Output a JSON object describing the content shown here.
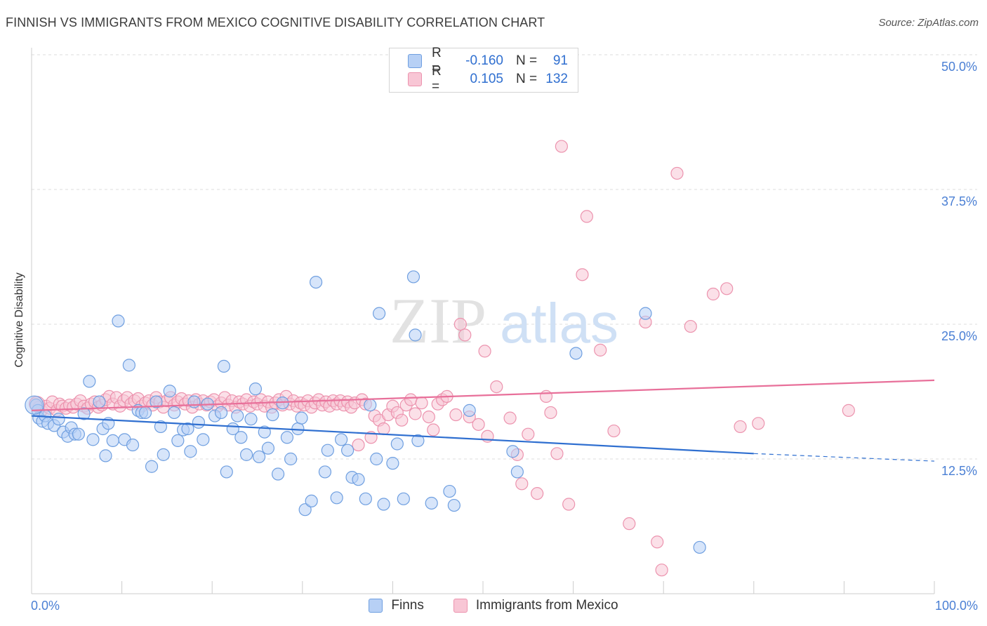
{
  "title": "FINNISH VS IMMIGRANTS FROM MEXICO COGNITIVE DISABILITY CORRELATION CHART",
  "source": "Source: ZipAtlas.com",
  "watermark": {
    "zip": "ZIP",
    "atlas": "atlas"
  },
  "legend": {
    "r_label": "R =",
    "n_label": "N =",
    "rows": [
      {
        "r": "-0.160",
        "n": "91"
      },
      {
        "r": "0.105",
        "n": "132"
      }
    ]
  },
  "colors": {
    "finns_fill": "#b7d0f5",
    "finns_stroke": "#6f9fe0",
    "finns_line": "#2f6fd0",
    "mexico_fill": "#f8c6d5",
    "mexico_stroke": "#ec93ae",
    "mexico_line": "#e8709a",
    "grid": "#dddddd",
    "axis_text": "#4a7fd4"
  },
  "chart_data": {
    "type": "scatter",
    "title": "FINNISH VS IMMIGRANTS FROM MEXICO COGNITIVE DISABILITY CORRELATION CHART",
    "ylabel": "Cognitive Disability",
    "xlabel": "",
    "xlim": [
      0,
      100
    ],
    "ylim": [
      0,
      52
    ],
    "x_tick_labels": [
      "0.0%",
      "100.0%"
    ],
    "y_ticks": [
      12.5,
      25.0,
      37.5,
      50.0
    ],
    "y_tick_labels": [
      "12.5%",
      "25.0%",
      "37.5%",
      "50.0%"
    ],
    "grid": true,
    "legend_position": "top-center",
    "series": [
      {
        "name": "Finns",
        "r": -0.16,
        "n": 91,
        "trend": {
          "x": [
            0,
            80
          ],
          "y": [
            16.5,
            13.0
          ],
          "dashed_to": [
            100,
            12.3
          ]
        },
        "points": [
          [
            0.5,
            17.5
          ],
          [
            0.7,
            17.0
          ],
          [
            0.8,
            16.3
          ],
          [
            1.2,
            16.0
          ],
          [
            1.5,
            16.5
          ],
          [
            1.8,
            15.8
          ],
          [
            2.5,
            15.6
          ],
          [
            3.0,
            16.2
          ],
          [
            3.5,
            15.0
          ],
          [
            4.0,
            14.6
          ],
          [
            4.4,
            15.4
          ],
          [
            4.8,
            14.8
          ],
          [
            5.2,
            14.8
          ],
          [
            5.8,
            16.7
          ],
          [
            6.4,
            19.7
          ],
          [
            6.8,
            14.3
          ],
          [
            7.5,
            17.8
          ],
          [
            7.9,
            15.3
          ],
          [
            8.2,
            12.8
          ],
          [
            8.5,
            15.8
          ],
          [
            9.0,
            14.2
          ],
          [
            9.6,
            25.3
          ],
          [
            10.3,
            14.3
          ],
          [
            10.8,
            21.2
          ],
          [
            11.2,
            13.8
          ],
          [
            11.8,
            17.0
          ],
          [
            12.2,
            16.8
          ],
          [
            12.6,
            16.8
          ],
          [
            13.3,
            11.8
          ],
          [
            13.8,
            17.8
          ],
          [
            14.3,
            15.5
          ],
          [
            14.6,
            12.9
          ],
          [
            15.3,
            18.8
          ],
          [
            15.8,
            16.8
          ],
          [
            16.2,
            14.2
          ],
          [
            16.8,
            15.2
          ],
          [
            17.3,
            15.3
          ],
          [
            17.6,
            13.2
          ],
          [
            18.0,
            17.8
          ],
          [
            18.5,
            15.9
          ],
          [
            19.0,
            14.3
          ],
          [
            19.5,
            17.6
          ],
          [
            20.3,
            16.5
          ],
          [
            21.0,
            16.8
          ],
          [
            21.3,
            21.1
          ],
          [
            21.6,
            11.3
          ],
          [
            22.3,
            15.3
          ],
          [
            22.8,
            16.5
          ],
          [
            23.2,
            14.5
          ],
          [
            23.8,
            12.9
          ],
          [
            24.3,
            16.2
          ],
          [
            24.8,
            19.0
          ],
          [
            25.2,
            12.7
          ],
          [
            25.8,
            15.0
          ],
          [
            26.2,
            13.5
          ],
          [
            26.7,
            16.6
          ],
          [
            27.3,
            11.1
          ],
          [
            27.8,
            17.7
          ],
          [
            28.3,
            14.5
          ],
          [
            28.7,
            12.5
          ],
          [
            29.5,
            15.3
          ],
          [
            29.9,
            16.3
          ],
          [
            30.3,
            7.8
          ],
          [
            31.0,
            8.6
          ],
          [
            31.5,
            28.9
          ],
          [
            32.5,
            11.3
          ],
          [
            32.8,
            13.3
          ],
          [
            33.8,
            8.9
          ],
          [
            34.3,
            14.3
          ],
          [
            35.0,
            13.3
          ],
          [
            35.5,
            10.8
          ],
          [
            36.2,
            10.6
          ],
          [
            37.0,
            8.8
          ],
          [
            37.5,
            17.5
          ],
          [
            38.2,
            12.5
          ],
          [
            38.5,
            26.0
          ],
          [
            39.0,
            8.3
          ],
          [
            40.0,
            12.1
          ],
          [
            40.5,
            13.9
          ],
          [
            41.2,
            8.8
          ],
          [
            42.3,
            29.4
          ],
          [
            42.5,
            24.0
          ],
          [
            42.8,
            14.2
          ],
          [
            44.3,
            8.4
          ],
          [
            46.3,
            9.5
          ],
          [
            46.8,
            8.2
          ],
          [
            48.5,
            17.0
          ],
          [
            53.3,
            13.2
          ],
          [
            53.8,
            11.3
          ],
          [
            60.3,
            22.3
          ],
          [
            68.0,
            26.0
          ],
          [
            74.0,
            4.3
          ]
        ]
      },
      {
        "name": "Immigrants from Mexico",
        "r": 0.105,
        "n": 132,
        "trend": {
          "x": [
            0,
            100
          ],
          "y": [
            17.0,
            19.8
          ]
        },
        "points": [
          [
            0.4,
            17.6
          ],
          [
            0.8,
            17.3
          ],
          [
            1.1,
            17.0
          ],
          [
            1.6,
            17.4
          ],
          [
            2.0,
            17.2
          ],
          [
            2.3,
            17.8
          ],
          [
            2.8,
            17.0
          ],
          [
            3.1,
            17.6
          ],
          [
            3.4,
            17.4
          ],
          [
            3.8,
            17.2
          ],
          [
            4.2,
            17.5
          ],
          [
            4.6,
            17.3
          ],
          [
            5.0,
            17.6
          ],
          [
            5.4,
            17.9
          ],
          [
            5.8,
            17.4
          ],
          [
            6.2,
            17.2
          ],
          [
            6.6,
            17.6
          ],
          [
            7.0,
            17.8
          ],
          [
            7.4,
            17.3
          ],
          [
            7.8,
            17.5
          ],
          [
            8.2,
            18.0
          ],
          [
            8.6,
            18.3
          ],
          [
            9.0,
            17.6
          ],
          [
            9.4,
            18.2
          ],
          [
            9.8,
            17.4
          ],
          [
            10.2,
            17.9
          ],
          [
            10.6,
            18.2
          ],
          [
            11.0,
            17.6
          ],
          [
            11.4,
            17.9
          ],
          [
            11.8,
            18.1
          ],
          [
            12.2,
            17.4
          ],
          [
            12.6,
            17.7
          ],
          [
            13.0,
            17.9
          ],
          [
            13.4,
            17.5
          ],
          [
            13.8,
            18.2
          ],
          [
            14.2,
            17.8
          ],
          [
            14.6,
            17.3
          ],
          [
            15.0,
            17.9
          ],
          [
            15.4,
            18.2
          ],
          [
            15.8,
            17.5
          ],
          [
            16.2,
            17.8
          ],
          [
            16.6,
            18.1
          ],
          [
            17.0,
            17.6
          ],
          [
            17.4,
            17.9
          ],
          [
            17.8,
            17.3
          ],
          [
            18.2,
            18.0
          ],
          [
            18.6,
            17.6
          ],
          [
            19.0,
            17.9
          ],
          [
            19.4,
            17.5
          ],
          [
            19.8,
            17.8
          ],
          [
            20.2,
            18.0
          ],
          [
            20.6,
            17.4
          ],
          [
            21.0,
            17.7
          ],
          [
            21.4,
            18.2
          ],
          [
            21.8,
            17.5
          ],
          [
            22.2,
            17.9
          ],
          [
            22.6,
            17.3
          ],
          [
            23.0,
            17.8
          ],
          [
            23.4,
            17.6
          ],
          [
            23.8,
            18.0
          ],
          [
            24.2,
            17.4
          ],
          [
            24.6,
            17.8
          ],
          [
            25.0,
            17.6
          ],
          [
            25.4,
            18.0
          ],
          [
            25.8,
            17.4
          ],
          [
            26.2,
            17.8
          ],
          [
            26.6,
            17.3
          ],
          [
            27.0,
            17.7
          ],
          [
            27.4,
            18.0
          ],
          [
            27.8,
            17.5
          ],
          [
            28.2,
            18.3
          ],
          [
            28.6,
            17.6
          ],
          [
            29.0,
            17.9
          ],
          [
            29.4,
            17.4
          ],
          [
            29.8,
            17.7
          ],
          [
            30.2,
            17.5
          ],
          [
            30.6,
            17.9
          ],
          [
            31.0,
            17.3
          ],
          [
            31.4,
            17.7
          ],
          [
            31.8,
            18.0
          ],
          [
            32.2,
            17.5
          ],
          [
            32.6,
            17.8
          ],
          [
            33.0,
            17.4
          ],
          [
            33.4,
            17.9
          ],
          [
            33.8,
            17.6
          ],
          [
            34.2,
            17.9
          ],
          [
            34.6,
            17.5
          ],
          [
            35.0,
            17.8
          ],
          [
            35.4,
            17.3
          ],
          [
            35.8,
            17.7
          ],
          [
            36.2,
            13.8
          ],
          [
            36.6,
            18.0
          ],
          [
            37.0,
            17.6
          ],
          [
            37.6,
            14.5
          ],
          [
            38.0,
            16.5
          ],
          [
            38.5,
            16.1
          ],
          [
            39.0,
            15.3
          ],
          [
            39.5,
            16.6
          ],
          [
            40.0,
            17.4
          ],
          [
            40.5,
            16.8
          ],
          [
            41.0,
            16.1
          ],
          [
            41.5,
            17.5
          ],
          [
            42.0,
            18.0
          ],
          [
            42.5,
            16.7
          ],
          [
            43.2,
            17.7
          ],
          [
            44.0,
            16.4
          ],
          [
            44.5,
            15.2
          ],
          [
            45.0,
            17.6
          ],
          [
            45.5,
            18.0
          ],
          [
            46.0,
            18.3
          ],
          [
            47.0,
            16.6
          ],
          [
            47.5,
            25.0
          ],
          [
            48.0,
            24.0
          ],
          [
            48.5,
            16.4
          ],
          [
            49.5,
            15.7
          ],
          [
            50.2,
            22.5
          ],
          [
            50.5,
            14.6
          ],
          [
            51.5,
            19.2
          ],
          [
            53.0,
            16.3
          ],
          [
            53.8,
            12.9
          ],
          [
            54.3,
            10.2
          ],
          [
            55.0,
            14.8
          ],
          [
            56.0,
            9.3
          ],
          [
            57.0,
            18.3
          ],
          [
            57.5,
            16.8
          ],
          [
            58.2,
            13.0
          ],
          [
            58.7,
            41.5
          ],
          [
            59.5,
            8.3
          ],
          [
            61.0,
            29.6
          ],
          [
            61.5,
            35.0
          ],
          [
            63.0,
            22.6
          ],
          [
            64.5,
            15.1
          ],
          [
            66.2,
            6.5
          ],
          [
            68.0,
            25.2
          ],
          [
            69.3,
            4.8
          ],
          [
            69.8,
            2.2
          ],
          [
            71.5,
            39.0
          ],
          [
            73.0,
            24.8
          ],
          [
            75.5,
            27.8
          ],
          [
            77.0,
            28.3
          ],
          [
            78.5,
            15.5
          ],
          [
            80.5,
            15.8
          ],
          [
            90.5,
            17.0
          ]
        ]
      }
    ]
  },
  "bottom_legend": [
    "Finns",
    "Immigrants from Mexico"
  ]
}
